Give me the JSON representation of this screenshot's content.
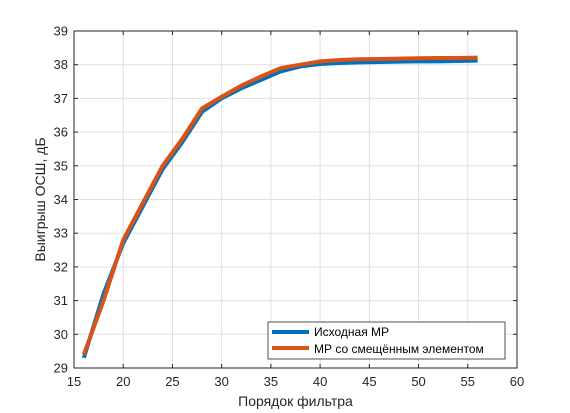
{
  "chart_data": {
    "type": "line",
    "xlabel": "Порядок фильтра",
    "ylabel": "Выигрыш ОСШ, дБ",
    "xlim": [
      15,
      60
    ],
    "ylim": [
      29,
      39
    ],
    "xticks": [
      15,
      20,
      25,
      30,
      35,
      40,
      45,
      50,
      55,
      60
    ],
    "yticks": [
      29,
      30,
      31,
      32,
      33,
      34,
      35,
      36,
      37,
      38,
      39
    ],
    "grid": true,
    "legend_position": "bottom-right",
    "series": [
      {
        "name": "Исходная МР",
        "color": "#0072BD",
        "x": [
          16,
          18,
          20,
          22,
          24,
          26,
          28,
          30,
          32,
          34,
          36,
          38,
          40,
          42,
          44,
          46,
          48,
          50,
          52,
          54,
          56
        ],
        "y": [
          29.3,
          31.2,
          32.7,
          33.8,
          34.9,
          35.7,
          36.6,
          37.0,
          37.3,
          37.55,
          37.8,
          37.95,
          38.02,
          38.05,
          38.07,
          38.08,
          38.09,
          38.1,
          38.1,
          38.11,
          38.12
        ]
      },
      {
        "name": "МР со смещённым элементом",
        "color": "#D95319",
        "x": [
          16,
          18,
          20,
          22,
          24,
          26,
          28,
          30,
          32,
          34,
          36,
          38,
          40,
          42,
          44,
          46,
          48,
          50,
          52,
          54,
          56
        ],
        "y": [
          29.4,
          31.0,
          32.8,
          33.9,
          35.0,
          35.8,
          36.7,
          37.05,
          37.38,
          37.65,
          37.9,
          38.0,
          38.1,
          38.14,
          38.16,
          38.17,
          38.18,
          38.19,
          38.2,
          38.2,
          38.21
        ]
      }
    ]
  }
}
